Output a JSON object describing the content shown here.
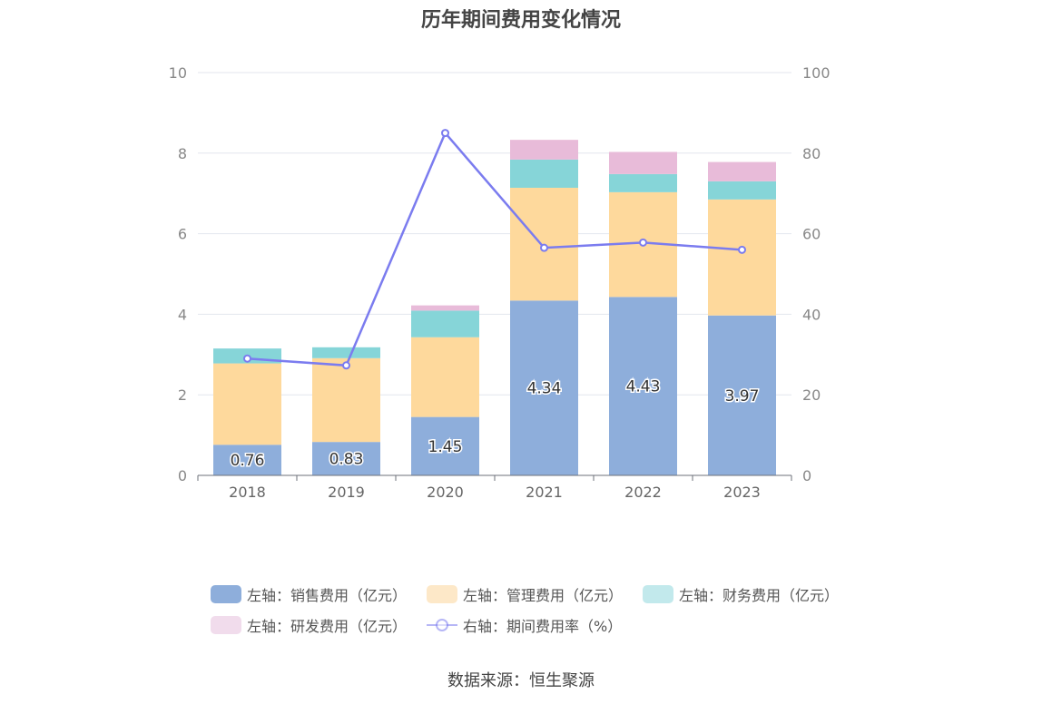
{
  "title": "历年期间费用变化情况",
  "source": "数据来源：恒生聚源",
  "chart_data": {
    "type": "bar",
    "stacked": true,
    "categories": [
      "2018",
      "2019",
      "2020",
      "2021",
      "2022",
      "2023"
    ],
    "series": [
      {
        "name": "左轴：销售费用（亿元）",
        "axis": "left",
        "color": "#8eaedb",
        "legend_color": "#8eaedb",
        "values": [
          0.76,
          0.83,
          1.45,
          4.34,
          4.43,
          3.97
        ],
        "labels": [
          "0.76",
          "0.83",
          "1.45",
          "4.34",
          "4.43",
          "3.97"
        ]
      },
      {
        "name": "左轴：管理费用（亿元）",
        "axis": "left",
        "color": "#fed99c",
        "legend_color": "#fde8c8",
        "values": [
          2.02,
          2.08,
          1.98,
          2.8,
          2.6,
          2.88
        ]
      },
      {
        "name": "左轴：财务费用（亿元）",
        "axis": "left",
        "color": "#86d5d8",
        "legend_color": "#c2e9ec",
        "values": [
          0.37,
          0.27,
          0.66,
          0.7,
          0.45,
          0.45
        ]
      },
      {
        "name": "左轴：研发费用（亿元）",
        "axis": "left",
        "color": "#e8bbd9",
        "legend_color": "#f1dcec",
        "values": [
          0.0,
          0.0,
          0.13,
          0.49,
          0.55,
          0.48
        ]
      },
      {
        "name": "右轴：期间费用率（%）",
        "axis": "right",
        "type": "line",
        "color": "#7b7cef",
        "values": [
          29,
          27.3,
          85,
          56.5,
          57.8,
          56
        ]
      }
    ],
    "left_axis": {
      "min": 0,
      "max": 10,
      "ticks": [
        "0",
        "2",
        "4",
        "6",
        "8",
        "10"
      ]
    },
    "right_axis": {
      "min": 0,
      "max": 100,
      "ticks": [
        "0",
        "20",
        "40",
        "60",
        "80",
        "100"
      ]
    },
    "grid": true,
    "legend_position": "bottom"
  }
}
